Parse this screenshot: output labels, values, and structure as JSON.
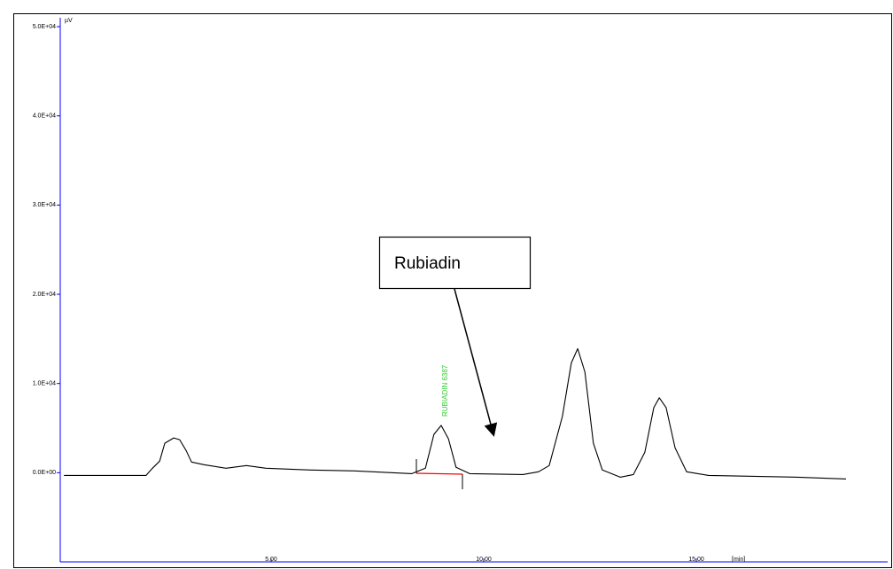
{
  "chart_data": {
    "type": "line",
    "x_label": "[min]",
    "y_label": "µV",
    "x": [
      0.13,
      2.06,
      2.21,
      2.38,
      2.5,
      2.71,
      2.85,
      3.0,
      3.13,
      3.42,
      3.94,
      4.42,
      4.88,
      5.92,
      6.96,
      8.31,
      8.63,
      8.83,
      9.0,
      9.17,
      9.35,
      9.67,
      10.92,
      11.29,
      11.54,
      11.85,
      12.06,
      12.21,
      12.38,
      12.58,
      12.79,
      13.21,
      13.52,
      13.79,
      14.0,
      14.13,
      14.29,
      14.5,
      14.77,
      15.29,
      17.38,
      18.52
    ],
    "values": [
      -300,
      -300,
      500,
      1300,
      3300,
      3900,
      3700,
      2500,
      1200,
      900,
      500,
      800,
      500,
      300,
      200,
      -100,
      500,
      4300,
      5300,
      3800,
      600,
      -100,
      -200,
      100,
      800,
      6300,
      12300,
      13900,
      11300,
      3300,
      300,
      -500,
      -200,
      2300,
      7300,
      8400,
      7300,
      2800,
      100,
      -300,
      -500,
      -700
    ],
    "color": "#000000",
    "axis_color": "#0000ff",
    "xlim": [
      0,
      19.5
    ],
    "ylim": [
      -10000,
      51000
    ],
    "xticks": [
      {
        "value": 5,
        "label": "5.00"
      },
      {
        "value": 10,
        "label": "10.00"
      },
      {
        "value": 15,
        "label": "15.00"
      }
    ],
    "yticks": [
      {
        "value": 0,
        "label": "0.0E+00"
      },
      {
        "value": 10000,
        "label": "1.0E+04"
      },
      {
        "value": 20000,
        "label": "2.0E+04"
      },
      {
        "value": 30000,
        "label": "3.0E+04"
      },
      {
        "value": 40000,
        "label": "4.0E+04"
      },
      {
        "value": 50000,
        "label": "5.0E+04"
      }
    ],
    "peak_label": "RUBIADIN 6387",
    "callout": "Rubiadin"
  }
}
